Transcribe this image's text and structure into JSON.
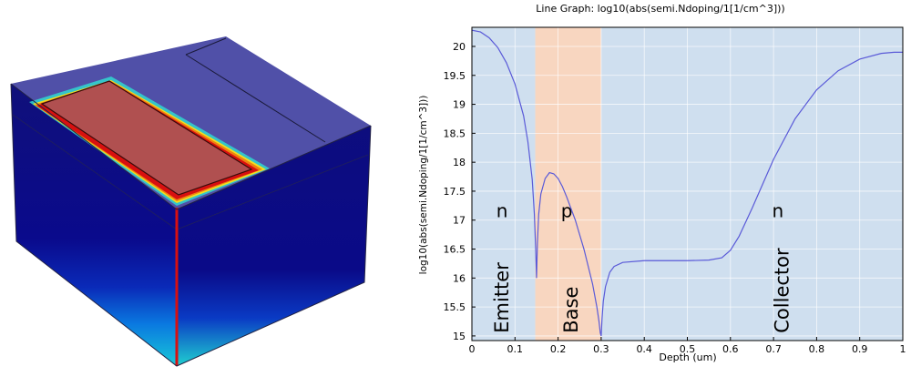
{
  "chart_data": {
    "type": "line",
    "title": "Line Graph: log10(abs(semi.Ndoping/1[1/cm^3]))",
    "xlabel": "Depth (um)",
    "ylabel": "log10(abs(semi.Ndoping/1[1/cm^3]))",
    "xlim": [
      0,
      1
    ],
    "ylim": [
      14.92,
      20.33
    ],
    "xticks": [
      "0",
      "0.1",
      "0.2",
      "0.3",
      "0.4",
      "0.5",
      "0.6",
      "0.7",
      "0.8",
      "0.9",
      "1"
    ],
    "yticks": [
      "15",
      "15.5",
      "16",
      "16.5",
      "17",
      "17.5",
      "18",
      "18.5",
      "19",
      "19.5",
      "20"
    ],
    "grid": true,
    "series": [
      {
        "x": [
          0,
          0.02,
          0.04,
          0.06,
          0.08,
          0.1,
          0.12,
          0.13,
          0.14,
          0.145,
          0.148,
          0.15,
          0.152,
          0.155,
          0.16,
          0.17,
          0.18,
          0.19,
          0.2,
          0.21,
          0.22,
          0.24,
          0.26,
          0.28,
          0.29,
          0.295,
          0.298,
          0.3,
          0.302,
          0.305,
          0.31,
          0.32,
          0.33,
          0.35,
          0.4,
          0.45,
          0.5,
          0.55,
          0.58,
          0.6,
          0.62,
          0.65,
          0.7,
          0.75,
          0.8,
          0.85,
          0.9,
          0.95,
          0.98,
          1.0
        ],
        "y": [
          20.28,
          20.25,
          20.15,
          19.98,
          19.72,
          19.35,
          18.8,
          18.35,
          17.7,
          17.1,
          16.5,
          16.0,
          16.6,
          17.1,
          17.45,
          17.72,
          17.82,
          17.8,
          17.72,
          17.58,
          17.4,
          17.0,
          16.5,
          15.9,
          15.5,
          15.25,
          15.05,
          15.0,
          15.3,
          15.6,
          15.85,
          16.1,
          16.2,
          16.27,
          16.3,
          16.3,
          16.3,
          16.31,
          16.35,
          16.48,
          16.72,
          17.2,
          18.05,
          18.75,
          19.25,
          19.58,
          19.78,
          19.88,
          19.9,
          19.9
        ]
      }
    ],
    "regions": [
      {
        "x0": 0,
        "x1": 0.147,
        "color": "#cfdfef"
      },
      {
        "x0": 0.147,
        "x1": 0.3,
        "color": "#f8d6c0"
      },
      {
        "x0": 0.3,
        "x1": 1,
        "color": "#cfdfef"
      }
    ],
    "annotations": [
      {
        "text": "n",
        "x": 0.07,
        "y": 17.05,
        "rotate": false
      },
      {
        "text": "p",
        "x": 0.22,
        "y": 17.05,
        "rotate": false
      },
      {
        "text": "n",
        "x": 0.71,
        "y": 17.05,
        "rotate": false
      },
      {
        "text": "Emitter",
        "x": 0.07,
        "y": 15.05,
        "rotate": true
      },
      {
        "text": "Base",
        "x": 0.23,
        "y": 15.05,
        "rotate": true
      },
      {
        "text": "Collector",
        "x": 0.72,
        "y": 15.05,
        "rotate": true
      }
    ],
    "colors": {
      "line": "#5a5ad8",
      "grid": "#ffffff",
      "axis": "#000000"
    }
  }
}
